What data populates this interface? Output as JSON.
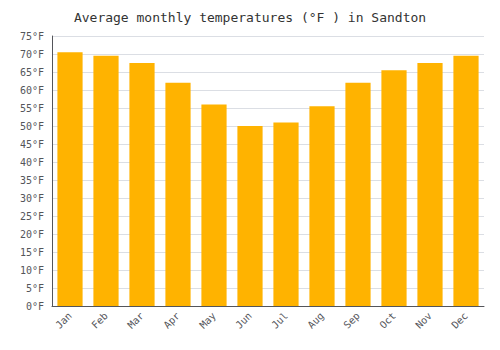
{
  "chart_data": {
    "type": "bar",
    "title": "Average monthly temperatures (°F ) in Sandton",
    "categories": [
      "Jan",
      "Feb",
      "Mar",
      "Apr",
      "May",
      "Jun",
      "Jul",
      "Aug",
      "Sep",
      "Oct",
      "Nov",
      "Dec"
    ],
    "values": [
      70.5,
      69.5,
      67.5,
      62,
      56,
      50,
      51,
      55.5,
      62,
      65.5,
      67.5,
      69.5
    ],
    "color": "#FFB300",
    "ylim": [
      0,
      75
    ],
    "yticks": [
      {
        "value": 0,
        "label": "0°F"
      },
      {
        "value": 5,
        "label": "5°F"
      },
      {
        "value": 10,
        "label": "10°F"
      },
      {
        "value": 15,
        "label": "15°F"
      },
      {
        "value": 20,
        "label": "20°F"
      },
      {
        "value": 25,
        "label": "25°F"
      },
      {
        "value": 30,
        "label": "30°F"
      },
      {
        "value": 35,
        "label": "35°F"
      },
      {
        "value": 40,
        "label": "40°F"
      },
      {
        "value": 45,
        "label": "45°F"
      },
      {
        "value": 50,
        "label": "50°F"
      },
      {
        "value": 55,
        "label": "55°F"
      },
      {
        "value": 60,
        "label": "60°F"
      },
      {
        "value": 65,
        "label": "65°F"
      },
      {
        "value": 70,
        "label": "70°F"
      },
      {
        "value": 75,
        "label": "75°F"
      }
    ],
    "grid": true
  }
}
